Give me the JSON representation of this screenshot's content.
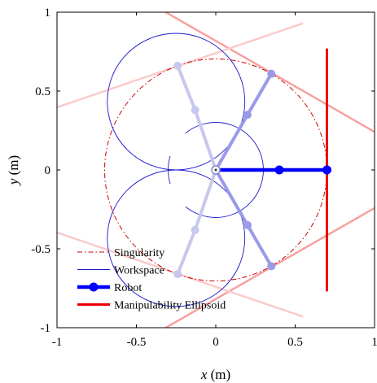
{
  "chart_data": {
    "type": "scatter",
    "xlim": [
      -1,
      1
    ],
    "ylim": [
      -1,
      1
    ],
    "x_ticks": [
      -1,
      -0.5,
      0,
      0.5,
      1
    ],
    "y_ticks": [
      -1,
      -0.5,
      0,
      0.5,
      1
    ],
    "x_tick_labels": [
      "-1",
      "-0.5",
      "0",
      "0.5",
      "1"
    ],
    "y_tick_labels": [
      "-1",
      "-0.5",
      "0",
      "0.5",
      "1"
    ],
    "xlabel_var": "x",
    "xlabel_unit": " (m)",
    "ylabel_var": "y",
    "ylabel_unit": " (m)",
    "grid": false,
    "legend_position": "bottom-left",
    "legend": [
      {
        "label": "Singularity",
        "color": "#cc0000",
        "style": "dash-dot"
      },
      {
        "label": "Workspace",
        "color": "#1a1acc",
        "style": "solid-thin"
      },
      {
        "label": "Robot",
        "color": "#0000ff",
        "style": "thick-marker"
      },
      {
        "label": "Manipulability Ellipsoid",
        "color": "#ee0000",
        "style": "solid-thick"
      }
    ],
    "singularity_circle": {
      "center": [
        0,
        0
      ],
      "radius": 0.7
    },
    "workspace": {
      "inner_radius": 0.3,
      "lobe_centers": [
        [
          -0.25,
          0.433
        ],
        [
          -0.25,
          -0.433
        ]
      ],
      "lobe_radius": 0.433
    },
    "robot_current": [
      [
        0,
        0
      ],
      [
        0.4,
        0
      ],
      [
        0.7,
        0
      ]
    ],
    "robot_ghosts": [
      {
        "points": [
          [
            0,
            0
          ],
          [
            -0.13,
            0.38
          ],
          [
            -0.24,
            0.66
          ]
        ],
        "color": "#c8c8ee"
      },
      {
        "points": [
          [
            0,
            0
          ],
          [
            0.2,
            0.35
          ],
          [
            0.35,
            0.61
          ]
        ],
        "color": "#9a9ae8"
      },
      {
        "points": [
          [
            0,
            0
          ],
          [
            -0.13,
            -0.38
          ],
          [
            -0.24,
            -0.66
          ]
        ],
        "color": "#c8c8ee"
      },
      {
        "points": [
          [
            0,
            0
          ],
          [
            0.2,
            -0.35
          ],
          [
            0.35,
            -0.61
          ]
        ],
        "color": "#9a9ae8"
      }
    ],
    "ellipsoid_current": {
      "color": "#ee0000",
      "points": [
        [
          0.7,
          0.77
        ],
        [
          0.7,
          -0.77
        ]
      ]
    },
    "ellipsoid_ghosts": [
      {
        "color": "#f8a0a0",
        "points": [
          [
            -0.35,
            1.02
          ],
          [
            1.02,
            0.23
          ]
        ]
      },
      {
        "color": "#f8a0a0",
        "points": [
          [
            -0.35,
            -1.02
          ],
          [
            1.02,
            -0.23
          ]
        ]
      },
      {
        "color": "#fbcaca",
        "points": [
          [
            -1.02,
            0.39
          ],
          [
            0.55,
            0.93
          ]
        ]
      },
      {
        "color": "#fbcaca",
        "points": [
          [
            -1.02,
            -0.39
          ],
          [
            0.55,
            -0.93
          ]
        ]
      }
    ]
  }
}
